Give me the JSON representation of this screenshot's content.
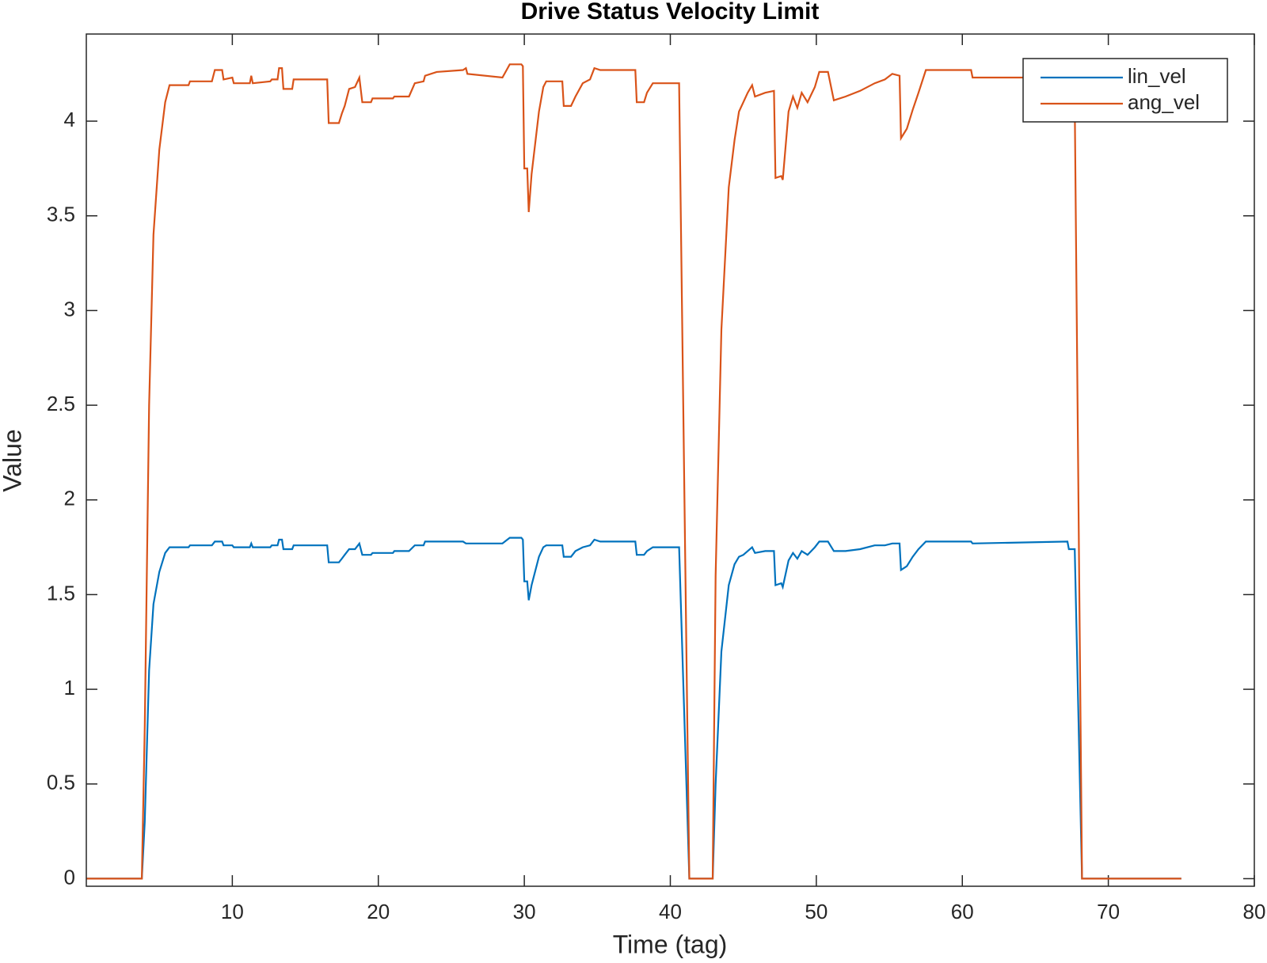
{
  "chart_data": {
    "type": "line",
    "title": "Drive Status Velocity Limit",
    "xlabel": "Time (tag)",
    "ylabel": "Value",
    "x": [
      0,
      3.8,
      4.0,
      4.3,
      4.6,
      5.0,
      5.4,
      5.7,
      7.0,
      7.1,
      8.6,
      8.8,
      9.3,
      9.4,
      10.0,
      10.1,
      11.2,
      11.3,
      11.4,
      12.6,
      12.7,
      13.1,
      13.2,
      13.4,
      13.5,
      14.1,
      14.2,
      16.5,
      16.6,
      17.3,
      17.5,
      17.7,
      18.0,
      18.4,
      18.7,
      18.9,
      19.5,
      19.6,
      21.0,
      21.1,
      22.1,
      22.5,
      23.1,
      23.2,
      24.0,
      25.8,
      26.0,
      26.1,
      28.5,
      29.0,
      29.8,
      29.9,
      30.0,
      30.2,
      30.3,
      30.5,
      31.0,
      31.3,
      31.5,
      32.6,
      32.7,
      33.2,
      33.5,
      34.0,
      34.5,
      34.8,
      35.2,
      37.6,
      37.7,
      38.2,
      38.4,
      38.8,
      40.6,
      41.3,
      42.9,
      43.1,
      43.5,
      44.0,
      44.4,
      44.7,
      45.0,
      45.3,
      45.6,
      45.8,
      46.5,
      47.1,
      47.2,
      47.6,
      47.7,
      48.1,
      48.4,
      48.7,
      49.0,
      49.4,
      49.9,
      50.2,
      50.8,
      51.2,
      52.0,
      53.0,
      54.0,
      54.7,
      55.2,
      55.7,
      55.8,
      56.2,
      56.6,
      57.0,
      57.5,
      60.6,
      60.7,
      67.2,
      67.3,
      67.7,
      68.2,
      75
    ],
    "series": [
      {
        "name": "lin_vel",
        "color": "#0072bd",
        "values": [
          0,
          0,
          0.3,
          1.1,
          1.45,
          1.62,
          1.72,
          1.75,
          1.75,
          1.76,
          1.76,
          1.78,
          1.78,
          1.76,
          1.76,
          1.75,
          1.75,
          1.77,
          1.75,
          1.75,
          1.76,
          1.76,
          1.79,
          1.79,
          1.74,
          1.74,
          1.76,
          1.76,
          1.67,
          1.67,
          1.69,
          1.71,
          1.74,
          1.74,
          1.77,
          1.71,
          1.71,
          1.72,
          1.72,
          1.73,
          1.73,
          1.76,
          1.76,
          1.78,
          1.78,
          1.78,
          1.77,
          1.77,
          1.77,
          1.8,
          1.8,
          1.79,
          1.57,
          1.57,
          1.47,
          1.55,
          1.7,
          1.75,
          1.76,
          1.76,
          1.7,
          1.7,
          1.73,
          1.75,
          1.76,
          1.79,
          1.78,
          1.78,
          1.71,
          1.71,
          1.73,
          1.75,
          1.75,
          0,
          0,
          0.5,
          1.2,
          1.55,
          1.66,
          1.7,
          1.71,
          1.73,
          1.75,
          1.72,
          1.73,
          1.73,
          1.55,
          1.56,
          1.54,
          1.68,
          1.72,
          1.69,
          1.73,
          1.71,
          1.75,
          1.78,
          1.78,
          1.73,
          1.73,
          1.74,
          1.76,
          1.76,
          1.77,
          1.77,
          1.63,
          1.65,
          1.7,
          1.74,
          1.78,
          1.78,
          1.77,
          1.78,
          1.74,
          1.74,
          0,
          0
        ]
      },
      {
        "name": "ang_vel",
        "color": "#d95319",
        "values": [
          0,
          0,
          0.8,
          2.5,
          3.4,
          3.85,
          4.1,
          4.19,
          4.19,
          4.21,
          4.21,
          4.27,
          4.27,
          4.22,
          4.23,
          4.2,
          4.2,
          4.24,
          4.2,
          4.21,
          4.22,
          4.22,
          4.28,
          4.28,
          4.17,
          4.17,
          4.22,
          4.22,
          3.99,
          3.99,
          4.04,
          4.08,
          4.17,
          4.18,
          4.23,
          4.1,
          4.1,
          4.12,
          4.12,
          4.13,
          4.13,
          4.2,
          4.21,
          4.24,
          4.26,
          4.27,
          4.28,
          4.25,
          4.23,
          4.3,
          4.3,
          4.29,
          3.75,
          3.75,
          3.52,
          3.72,
          4.05,
          4.18,
          4.21,
          4.21,
          4.08,
          4.08,
          4.13,
          4.2,
          4.22,
          4.28,
          4.27,
          4.27,
          4.1,
          4.1,
          4.15,
          4.2,
          4.2,
          0,
          0,
          1.6,
          2.9,
          3.65,
          3.9,
          4.05,
          4.1,
          4.15,
          4.19,
          4.13,
          4.15,
          4.16,
          3.7,
          3.71,
          3.69,
          4.05,
          4.13,
          4.07,
          4.15,
          4.1,
          4.18,
          4.26,
          4.26,
          4.11,
          4.13,
          4.16,
          4.2,
          4.22,
          4.25,
          4.24,
          3.91,
          3.96,
          4.06,
          4.15,
          4.27,
          4.27,
          4.23,
          4.23,
          4.23,
          4.1,
          0,
          0
        ]
      }
    ],
    "xlim": [
      0,
      80
    ],
    "xticks": [
      10,
      20,
      30,
      40,
      50,
      60,
      70,
      80
    ],
    "ylim": [
      -0.04,
      4.46
    ],
    "yticks": [
      0,
      0.5,
      1,
      1.5,
      2,
      2.5,
      3,
      3.5,
      4
    ],
    "grid": false,
    "legend": "top-right"
  }
}
